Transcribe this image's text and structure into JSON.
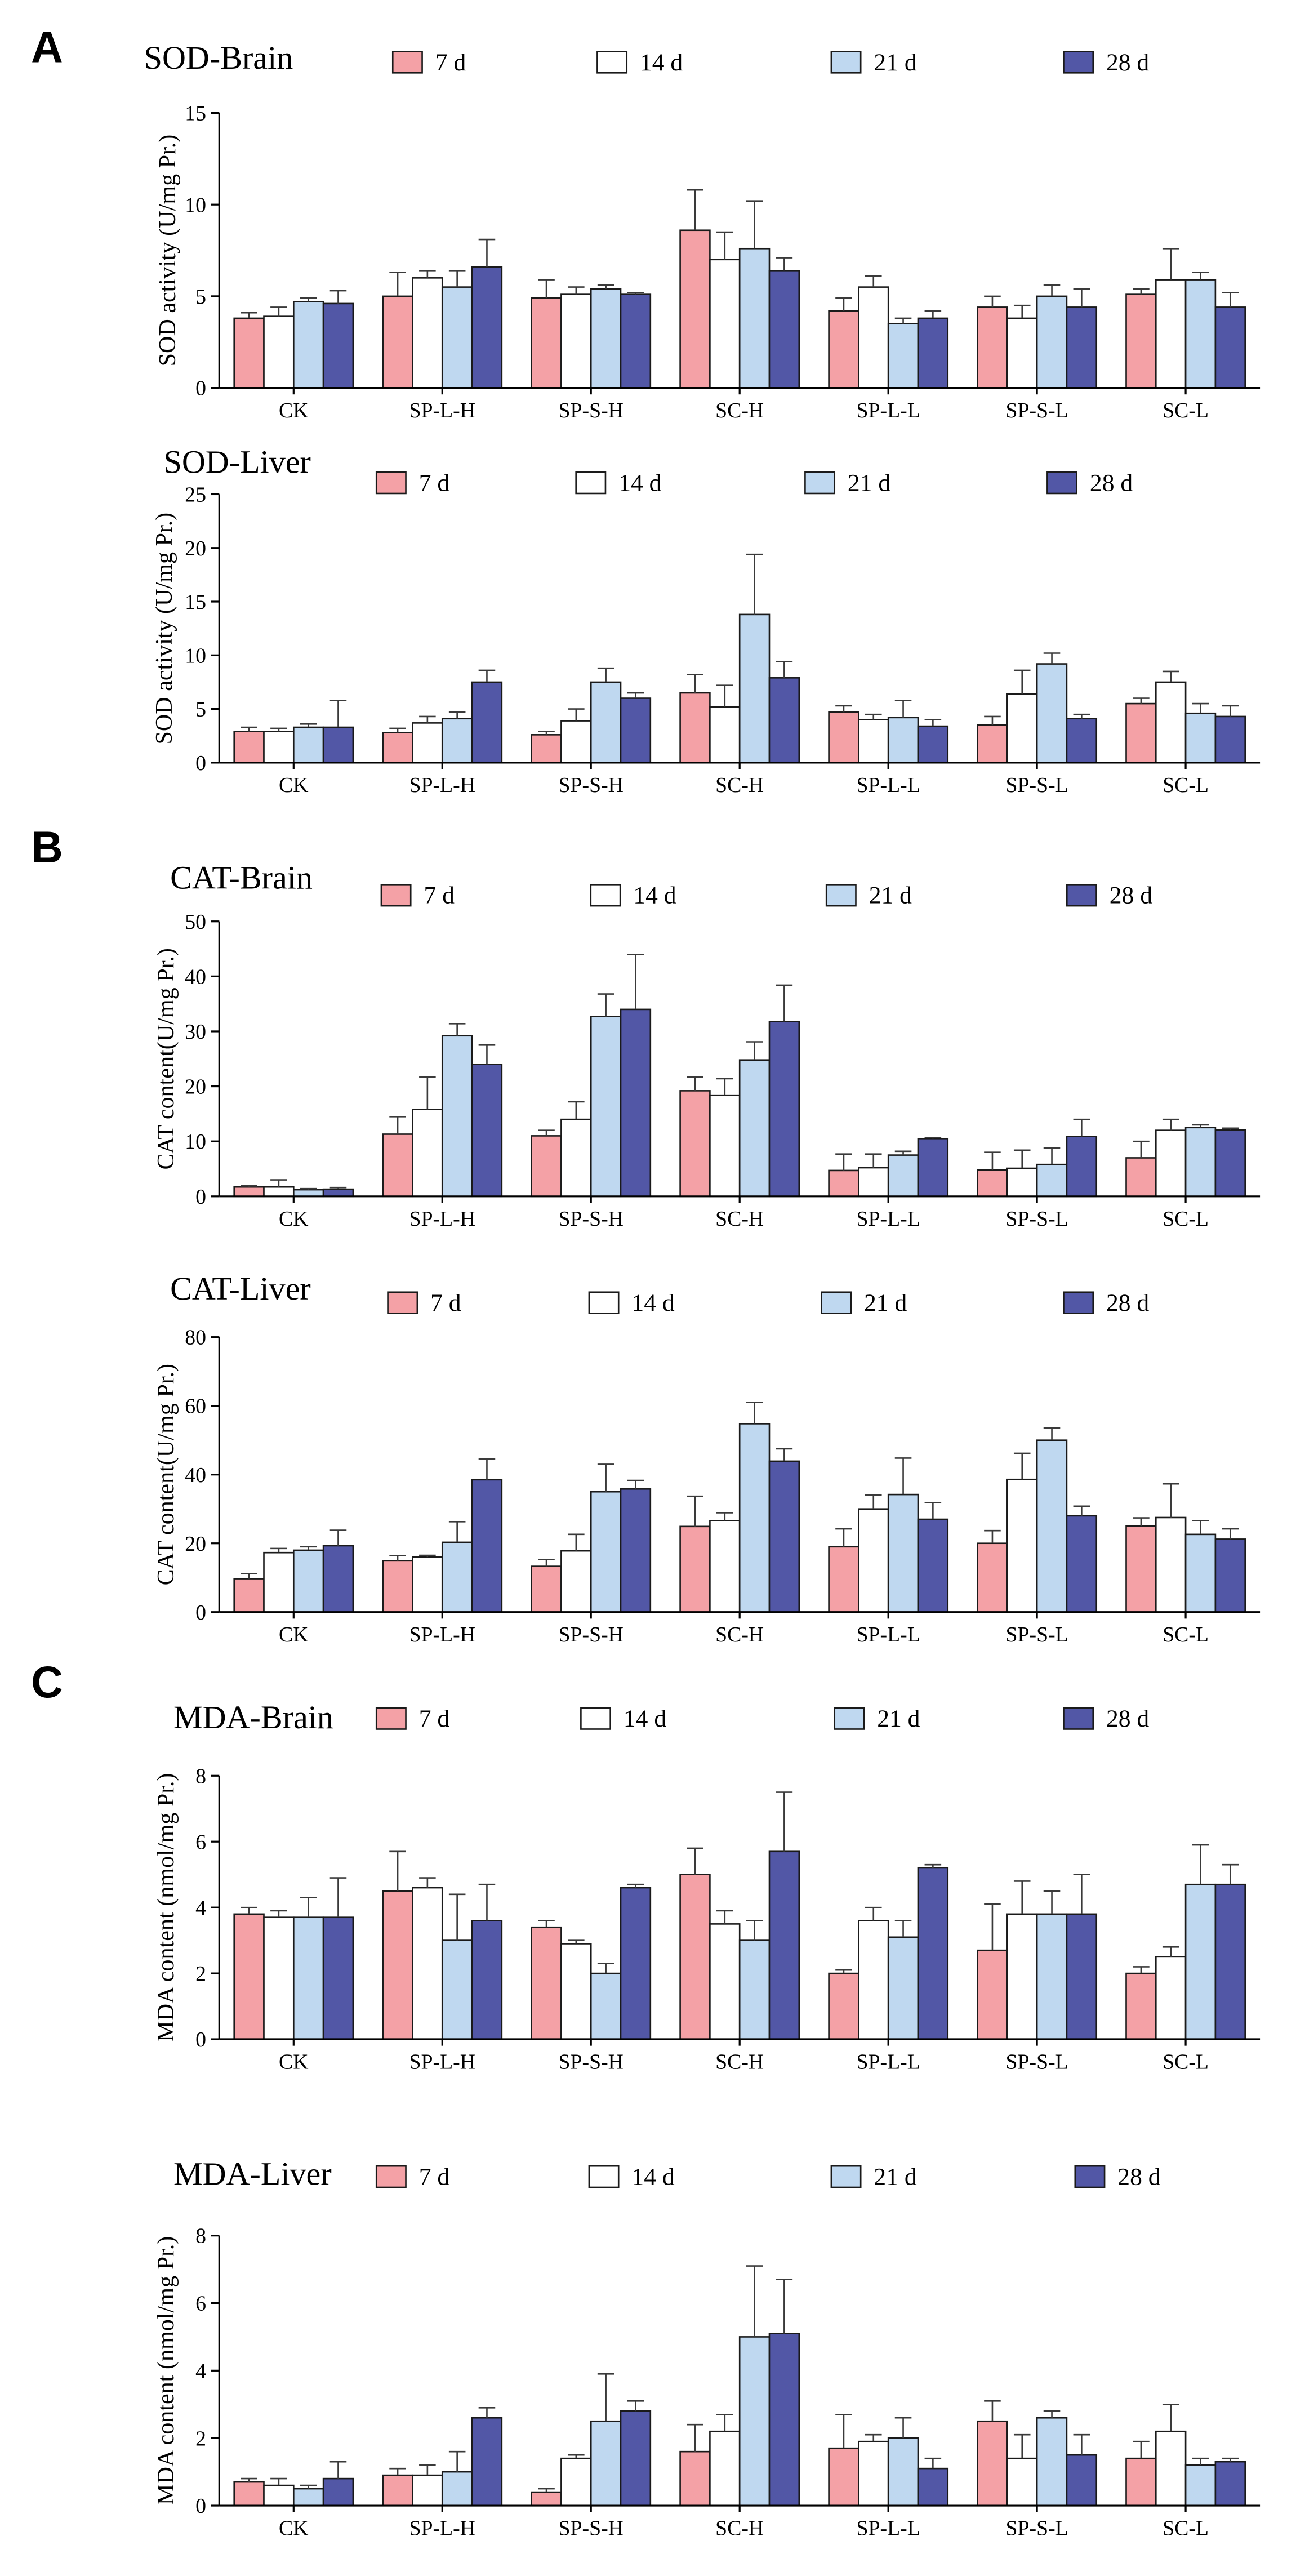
{
  "panels": [
    "A",
    "B",
    "C"
  ],
  "colors": {
    "series": [
      "#F4A1A6",
      "#FFFFFF",
      "#BFD8F0",
      "#5257A6"
    ],
    "outline": "#1A1A1A",
    "axis": "#000000"
  },
  "chart_data": [
    {
      "type": "bar",
      "title": "SOD-Brain",
      "xlabel": "",
      "ylabel": "SOD activity (U/mg Pr.)",
      "ylim": [
        0,
        15
      ],
      "yticks": [
        0,
        5,
        10,
        15
      ],
      "categories": [
        "CK",
        "SP-L-H",
        "SP-S-H",
        "SC-H",
        "SP-L-L",
        "SP-S-L",
        "SC-L"
      ],
      "series": [
        {
          "name": "7 d",
          "values": [
            3.8,
            5.0,
            4.9,
            8.6,
            4.2,
            4.4,
            5.1
          ],
          "errors": [
            0.3,
            1.3,
            1.0,
            2.2,
            0.7,
            0.6,
            0.3
          ]
        },
        {
          "name": "14 d",
          "values": [
            3.9,
            6.0,
            5.1,
            7.0,
            5.5,
            3.8,
            5.9
          ],
          "errors": [
            0.5,
            0.4,
            0.4,
            1.5,
            0.6,
            0.7,
            1.7
          ]
        },
        {
          "name": "21 d",
          "values": [
            4.7,
            5.5,
            5.4,
            7.6,
            3.5,
            5.0,
            5.9
          ],
          "errors": [
            0.2,
            0.9,
            0.2,
            2.6,
            0.3,
            0.6,
            0.4
          ]
        },
        {
          "name": "28 d",
          "values": [
            4.6,
            6.6,
            5.1,
            6.4,
            3.8,
            4.4,
            4.4
          ],
          "errors": [
            0.7,
            1.5,
            0.1,
            0.7,
            0.4,
            1.0,
            0.8
          ]
        }
      ]
    },
    {
      "type": "bar",
      "title": "SOD-Liver",
      "xlabel": "",
      "ylabel": "SOD activity (U/mg Pr.)",
      "ylim": [
        0,
        25
      ],
      "yticks": [
        0,
        5,
        10,
        15,
        20,
        25
      ],
      "categories": [
        "CK",
        "SP-L-H",
        "SP-S-H",
        "SC-H",
        "SP-L-L",
        "SP-S-L",
        "SC-L"
      ],
      "series": [
        {
          "name": "7 d",
          "values": [
            2.9,
            2.8,
            2.6,
            6.5,
            4.7,
            3.5,
            5.5
          ],
          "errors": [
            0.4,
            0.4,
            0.3,
            1.7,
            0.6,
            0.8,
            0.5
          ]
        },
        {
          "name": "14 d",
          "values": [
            2.9,
            3.7,
            3.9,
            5.2,
            4.0,
            6.4,
            7.5
          ],
          "errors": [
            0.3,
            0.6,
            1.1,
            2.0,
            0.5,
            2.2,
            1.0
          ]
        },
        {
          "name": "21 d",
          "values": [
            3.3,
            4.1,
            7.5,
            13.8,
            4.2,
            9.2,
            4.6
          ],
          "errors": [
            0.3,
            0.6,
            1.3,
            5.6,
            1.6,
            1.0,
            0.9
          ]
        },
        {
          "name": "28 d",
          "values": [
            3.3,
            7.5,
            6.0,
            7.9,
            3.4,
            4.1,
            4.3
          ],
          "errors": [
            2.5,
            1.1,
            0.5,
            1.5,
            0.6,
            0.4,
            1.0
          ]
        }
      ]
    },
    {
      "type": "bar",
      "title": "CAT-Brain",
      "xlabel": "",
      "ylabel": "CAT content(U/mg Pr.)",
      "ylim": [
        0,
        50
      ],
      "yticks": [
        0,
        10,
        20,
        30,
        40,
        50
      ],
      "categories": [
        "CK",
        "SP-L-H",
        "SP-S-H",
        "SC-H",
        "SP-L-L",
        "SP-S-L",
        "SC-L"
      ],
      "series": [
        {
          "name": "7 d",
          "values": [
            1.7,
            11.3,
            11.0,
            19.2,
            4.7,
            4.8,
            7.0
          ],
          "errors": [
            0.2,
            3.2,
            1.0,
            2.5,
            3.0,
            3.2,
            3.0
          ]
        },
        {
          "name": "14 d",
          "values": [
            1.7,
            15.8,
            14.0,
            18.4,
            5.2,
            5.1,
            12.0
          ],
          "errors": [
            1.3,
            5.9,
            3.2,
            3.0,
            2.5,
            3.3,
            2.0
          ]
        },
        {
          "name": "21 d",
          "values": [
            1.2,
            29.2,
            32.7,
            24.8,
            7.5,
            5.8,
            12.5
          ],
          "errors": [
            0.2,
            2.2,
            4.1,
            3.3,
            0.7,
            3.0,
            0.5
          ]
        },
        {
          "name": "28 d",
          "values": [
            1.3,
            24.0,
            34.0,
            31.8,
            10.5,
            10.9,
            12.1
          ],
          "errors": [
            0.3,
            3.5,
            10.0,
            6.6,
            0.2,
            3.1,
            0.3
          ]
        }
      ]
    },
    {
      "type": "bar",
      "title": "CAT-Liver",
      "xlabel": "",
      "ylabel": "CAT content(U/mg Pr.)",
      "ylim": [
        0,
        80
      ],
      "yticks": [
        0,
        20,
        40,
        60,
        80
      ],
      "categories": [
        "CK",
        "SP-L-H",
        "SP-S-H",
        "SC-H",
        "SP-L-L",
        "SP-S-L",
        "SC-L"
      ],
      "series": [
        {
          "name": "7 d",
          "values": [
            9.7,
            14.9,
            13.3,
            24.9,
            19.0,
            20.0,
            25.0
          ],
          "errors": [
            1.5,
            1.5,
            2.0,
            8.8,
            5.2,
            3.7,
            2.4
          ]
        },
        {
          "name": "14 d",
          "values": [
            17.3,
            16.0,
            17.8,
            26.6,
            30.0,
            38.6,
            27.5
          ],
          "errors": [
            1.2,
            0.5,
            4.8,
            2.3,
            4.0,
            7.6,
            9.8
          ]
        },
        {
          "name": "21 d",
          "values": [
            18.0,
            20.3,
            35.0,
            54.8,
            34.2,
            50.0,
            22.6
          ],
          "errors": [
            1.0,
            6.0,
            8.0,
            6.2,
            10.6,
            3.6,
            4.0
          ]
        },
        {
          "name": "28 d",
          "values": [
            19.3,
            38.5,
            35.8,
            43.9,
            27.0,
            28.0,
            21.2
          ],
          "errors": [
            4.5,
            6.0,
            2.5,
            3.6,
            4.8,
            2.8,
            3.0
          ]
        }
      ]
    },
    {
      "type": "bar",
      "title": "MDA-Brain",
      "xlabel": "",
      "ylabel": "MDA content (nmol/mg Pr.)",
      "ylim": [
        0,
        8
      ],
      "yticks": [
        0,
        2,
        4,
        6,
        8
      ],
      "categories": [
        "CK",
        "SP-L-H",
        "SP-S-H",
        "SC-H",
        "SP-L-L",
        "SP-S-L",
        "SC-L"
      ],
      "series": [
        {
          "name": "7 d",
          "values": [
            3.8,
            4.5,
            3.4,
            5.0,
            2.0,
            2.7,
            2.0
          ],
          "errors": [
            0.2,
            1.2,
            0.2,
            0.8,
            0.1,
            1.4,
            0.2
          ]
        },
        {
          "name": "14 d",
          "values": [
            3.7,
            4.6,
            2.9,
            3.5,
            3.6,
            3.8,
            2.5
          ],
          "errors": [
            0.2,
            0.3,
            0.1,
            0.4,
            0.4,
            1.0,
            0.3
          ]
        },
        {
          "name": "21 d",
          "values": [
            3.7,
            3.0,
            2.0,
            3.0,
            3.1,
            3.8,
            4.7
          ],
          "errors": [
            0.6,
            1.4,
            0.3,
            0.6,
            0.5,
            0.7,
            1.2
          ]
        },
        {
          "name": "28 d",
          "values": [
            3.7,
            3.6,
            4.6,
            5.7,
            5.2,
            3.8,
            4.7
          ],
          "errors": [
            1.2,
            1.1,
            0.1,
            1.8,
            0.1,
            1.2,
            0.6
          ]
        }
      ]
    },
    {
      "type": "bar",
      "title": "MDA-Liver",
      "xlabel": "",
      "ylabel": "MDA content (nmol/mg Pr.)",
      "ylim": [
        0,
        8
      ],
      "yticks": [
        0,
        2,
        4,
        6,
        8
      ],
      "categories": [
        "CK",
        "SP-L-H",
        "SP-S-H",
        "SC-H",
        "SP-L-L",
        "SP-S-L",
        "SC-L"
      ],
      "series": [
        {
          "name": "7 d",
          "values": [
            0.7,
            0.9,
            0.4,
            1.6,
            1.7,
            2.5,
            1.4
          ],
          "errors": [
            0.1,
            0.2,
            0.1,
            0.8,
            1.0,
            0.6,
            0.5
          ]
        },
        {
          "name": "14 d",
          "values": [
            0.6,
            0.9,
            1.4,
            2.2,
            1.9,
            1.4,
            2.2
          ],
          "errors": [
            0.2,
            0.3,
            0.1,
            0.5,
            0.2,
            0.7,
            0.8
          ]
        },
        {
          "name": "21 d",
          "values": [
            0.5,
            1.0,
            2.5,
            5.0,
            2.0,
            2.6,
            1.2
          ],
          "errors": [
            0.1,
            0.6,
            1.4,
            2.1,
            0.6,
            0.2,
            0.2
          ]
        },
        {
          "name": "28 d",
          "values": [
            0.8,
            2.6,
            2.8,
            5.1,
            1.1,
            1.5,
            1.3
          ],
          "errors": [
            0.5,
            0.3,
            0.3,
            1.6,
            0.3,
            0.6,
            0.1
          ]
        }
      ]
    }
  ]
}
